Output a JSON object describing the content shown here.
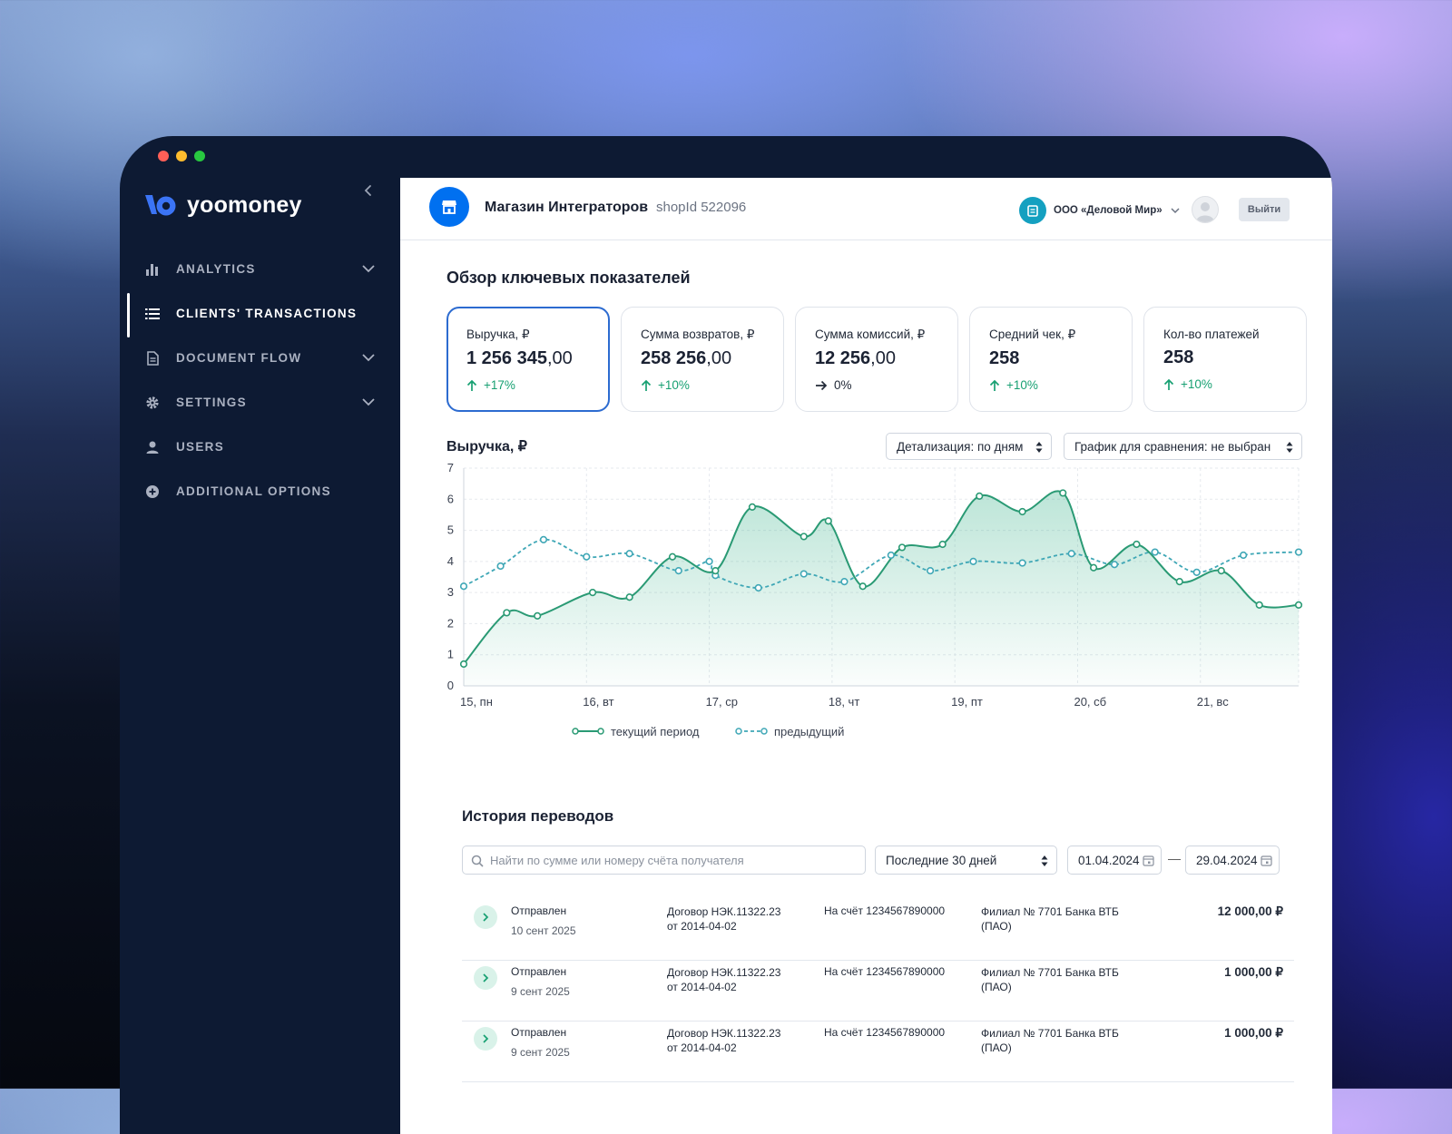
{
  "brand": {
    "name": "yoomoney"
  },
  "sidebar": {
    "items": [
      {
        "label": "ANALYTICS"
      },
      {
        "label": "CLIENTS' TRANSACTIONS"
      },
      {
        "label": "DOCUMENT FLOW"
      },
      {
        "label": "SETTINGS"
      },
      {
        "label": "USERS"
      },
      {
        "label": "ADDITIONAL OPTIONS"
      }
    ]
  },
  "header": {
    "shop_name": "Магазин Интеграторов",
    "shop_id": "shopId 522096",
    "org_name": "ООО «Деловой Мир»",
    "logout_label": "Выйти"
  },
  "overview": {
    "title": "Обзор ключевых показателей",
    "cards": [
      {
        "label": "Выручка, ₽",
        "value_int": "1 256 345",
        "value_dec": ",00",
        "delta": "+17%"
      },
      {
        "label": "Сумма возвратов, ₽",
        "value_int": "258 256",
        "value_dec": ",00",
        "delta": "+10%"
      },
      {
        "label": "Сумма комиссий, ₽",
        "value_int": "12 256",
        "value_dec": ",00",
        "delta": "0%"
      },
      {
        "label": "Средний чек, ₽",
        "value_int": "258",
        "value_dec": "",
        "delta": "+10%"
      },
      {
        "label": "Кол-во платежей",
        "value_int": "258",
        "value_dec": "",
        "delta": "+10%"
      }
    ]
  },
  "chart_controls": {
    "detail": "Детализация: по дням",
    "compare": "График для сравнения: не выбран"
  },
  "chart_data": {
    "type": "line",
    "title": "Выручка, ₽",
    "ylim": [
      0,
      7
    ],
    "yticks": [
      "0",
      "1",
      "2",
      "3",
      "4",
      "5",
      "6",
      "7"
    ],
    "categories": [
      "15, пн",
      "16, вт",
      "17, ср",
      "18, чт",
      "19, пт",
      "20, сб",
      "21, вс"
    ],
    "series": [
      {
        "name": "текущий период",
        "x": [
          0,
          0.35,
          0.6,
          1.05,
          1.35,
          1.7,
          2.05,
          2.35,
          2.77,
          2.97,
          3.25,
          3.57,
          3.9,
          4.2,
          4.55,
          4.88,
          5.13,
          5.48,
          5.83,
          6.17,
          6.48,
          6.8
        ],
        "values": [
          0.7,
          2.35,
          2.25,
          3.0,
          2.85,
          4.15,
          3.7,
          5.75,
          4.8,
          5.3,
          3.2,
          4.45,
          4.55,
          6.1,
          5.6,
          6.2,
          3.8,
          4.55,
          3.35,
          3.7,
          2.6,
          2.6
        ]
      },
      {
        "name": "предыдущий",
        "x": [
          0,
          0.3,
          0.65,
          1.0,
          1.35,
          1.75,
          2.0,
          2.05,
          2.4,
          2.77,
          3.1,
          3.48,
          3.8,
          4.15,
          4.55,
          4.95,
          5.3,
          5.63,
          5.97,
          6.35,
          6.8
        ],
        "values": [
          3.2,
          3.85,
          4.7,
          4.15,
          4.25,
          3.7,
          4.0,
          3.55,
          3.15,
          3.6,
          3.35,
          4.2,
          3.7,
          4.0,
          3.95,
          4.25,
          3.9,
          4.3,
          3.65,
          4.2,
          4.3
        ]
      }
    ]
  },
  "history": {
    "title": "История переводов",
    "search_placeholder": "Найти по сумме или номеру счёта получателя",
    "period": "Последние 30 дней",
    "date_from": "01.04.2024",
    "date_to": "29.04.2024",
    "rows": [
      {
        "status": "Отправлен",
        "date": "10 сент 2025",
        "contract_line1": "Договор НЭК.11322.23",
        "contract_line2": "от 2014-04-02",
        "account": "На счёт 1234567890000",
        "bank_line1": "Филиал № 7701 Банка ВТБ",
        "bank_line2": "(ПАО)",
        "amount": "12 000,00 ₽"
      },
      {
        "status": "Отправлен",
        "date": "9 сент 2025",
        "contract_line1": "Договор НЭК.11322.23",
        "contract_line2": "от 2014-04-02",
        "account": "На счёт 1234567890000",
        "bank_line1": "Филиал № 7701 Банка ВТБ",
        "bank_line2": "(ПАО)",
        "amount": "1 000,00 ₽"
      },
      {
        "status": "Отправлен",
        "date": "9 сент 2025",
        "contract_line1": "Договор НЭК.11322.23",
        "contract_line2": "от 2014-04-02",
        "account": "На счёт 1234567890000",
        "bank_line1": "Филиал № 7701 Банка ВТБ",
        "bank_line2": "(ПАО)",
        "amount": "1 000,00 ₽"
      }
    ]
  },
  "colors": {
    "accent": "#0070f0",
    "series_current": "#2a9a74",
    "series_previous": "#3fa7b6",
    "positive": "#17a072",
    "sidebar_bg": "#0d1a33"
  }
}
